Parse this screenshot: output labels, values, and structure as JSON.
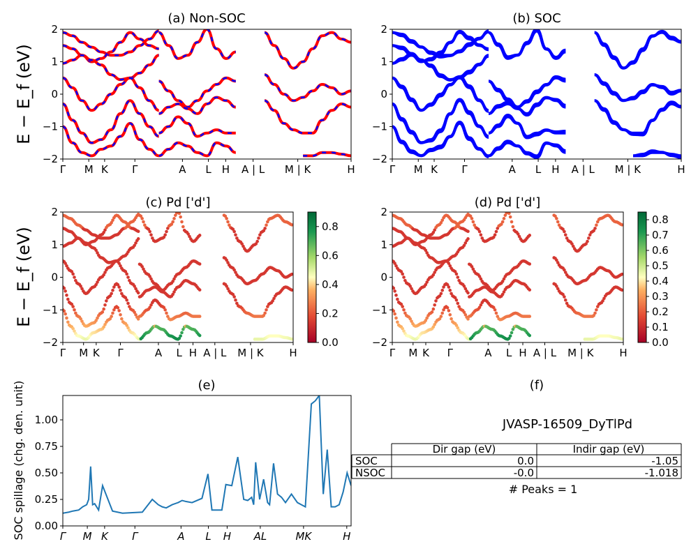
{
  "chart_data": [
    {
      "type": "line",
      "title": "(a) Non-SOC",
      "ylabel": "E − E_f (eV)",
      "ylim": [
        -2,
        2
      ],
      "yticks": [
        "2",
        "1",
        "0",
        "−1",
        "−2"
      ],
      "xtick_labels": [
        "Γ",
        "M",
        "K",
        "Γ",
        "A",
        "L",
        "H",
        "A | L",
        "M | K",
        "H"
      ],
      "series_colors": [
        "#ff0000",
        "#0000ff"
      ],
      "bands": [
        {
          "x": [
            0,
            0.5,
            1,
            1.5,
            2,
            2.5,
            3,
            3.5,
            4,
            4.5,
            5
          ],
          "y": [
            1.9,
            1.8,
            1.6,
            1.45,
            1.3,
            1.2,
            1.2,
            1.3,
            1.5,
            1.7,
            1.95
          ]
        },
        {
          "x": [
            0,
            0.5,
            1,
            1.5,
            2,
            2.5,
            3,
            3.5,
            4,
            4.5,
            5
          ],
          "y": [
            1.5,
            1.4,
            1.2,
            1.0,
            1.1,
            1.3,
            1.6,
            1.9,
            1.7,
            1.5,
            1.4
          ]
        },
        {
          "x": [
            0,
            0.5,
            1,
            1.5,
            2,
            2.5,
            3,
            3.5,
            4,
            4.5,
            5
          ],
          "y": [
            0.95,
            1.05,
            1.2,
            1.05,
            0.9,
            0.6,
            0.45,
            0.5,
            0.65,
            0.9,
            1.2
          ]
        },
        {
          "x": [
            0,
            0.5,
            1,
            1.5,
            2,
            2.5,
            3,
            3.5,
            4,
            4.5,
            5
          ],
          "y": [
            0.5,
            0.2,
            -0.2,
            -0.5,
            -0.3,
            0.0,
            0.3,
            0.5,
            0.2,
            -0.2,
            -0.5
          ]
        },
        {
          "x": [
            0,
            0.5,
            1,
            1.5,
            2,
            2.5,
            3,
            3.5,
            4,
            4.5,
            5
          ],
          "y": [
            -0.3,
            -0.8,
            -1.2,
            -1.5,
            -1.4,
            -1.1,
            -0.6,
            -0.2,
            -0.6,
            -1.0,
            -1.3
          ]
        },
        {
          "x": [
            0,
            0.5,
            1,
            1.5,
            2,
            2.5,
            3,
            3.5,
            4,
            4.5,
            5
          ],
          "y": [
            -1.0,
            -1.5,
            -1.8,
            -1.9,
            -1.7,
            -1.6,
            -1.3,
            -0.9,
            -1.4,
            -1.7,
            -1.9
          ]
        },
        {
          "x": [
            5,
            5.5,
            6,
            6.5,
            7,
            7.5,
            8,
            8.5,
            9
          ],
          "y": [
            0.4,
            0.1,
            -0.2,
            -0.4,
            -0.2,
            0.1,
            0.3,
            0.5,
            0.4
          ]
        },
        {
          "x": [
            5,
            5.5,
            6,
            6.5,
            7,
            7.5,
            8,
            8.5,
            9
          ],
          "y": [
            -0.6,
            -0.4,
            -0.3,
            -0.45,
            -0.6,
            -0.3,
            -0.1,
            -0.2,
            -0.4
          ]
        },
        {
          "x": [
            5,
            5.5,
            6,
            6.5,
            7,
            7.5,
            8,
            8.5,
            9
          ],
          "y": [
            -1.2,
            -1.0,
            -0.7,
            -0.9,
            -1.3,
            -1.2,
            -1.1,
            -1.2,
            -1.2
          ]
        },
        {
          "x": [
            5,
            5.5,
            6,
            6.5,
            7,
            7.5,
            8,
            8.5,
            9
          ],
          "y": [
            1.9,
            1.5,
            1.1,
            1.2,
            1.6,
            2.0,
            1.4,
            1.1,
            1.3
          ]
        },
        {
          "x": [
            5,
            5.5,
            6,
            6.5,
            7,
            7.5,
            8,
            8.5,
            9
          ],
          "y": [
            -1.9,
            -1.7,
            -1.5,
            -1.6,
            -1.8,
            -1.9,
            -1.5,
            -1.6,
            -1.8
          ]
        },
        {
          "x": [
            10.5,
            11,
            11.5,
            12,
            12.5,
            13,
            13.5,
            14,
            14.5,
            15
          ],
          "y": [
            0.6,
            0.3,
            0.0,
            -0.2,
            -0.1,
            0.1,
            0.3,
            0.2,
            0.0,
            0.1
          ]
        },
        {
          "x": [
            10.5,
            11,
            11.5,
            12,
            12.5,
            13,
            13.5,
            14,
            14.5,
            15
          ],
          "y": [
            -0.2,
            -0.5,
            -0.9,
            -1.1,
            -1.2,
            -1.2,
            -0.8,
            -0.5,
            -0.3,
            -0.4
          ]
        },
        {
          "x": [
            10.5,
            11,
            11.5,
            12,
            12.5,
            13,
            13.5,
            14,
            14.5,
            15
          ],
          "y": [
            1.9,
            1.5,
            1.1,
            0.8,
            1.0,
            1.4,
            1.8,
            1.9,
            1.7,
            1.6
          ]
        },
        {
          "x": [
            12.5,
            13,
            13.5,
            14,
            14.5,
            15
          ],
          "y": [
            -1.9,
            -1.9,
            -1.8,
            -1.8,
            -1.85,
            -1.9
          ]
        }
      ]
    },
    {
      "type": "line",
      "title": "(b) SOC",
      "ylim": [
        -2,
        2
      ],
      "yticks": [
        "2",
        "1",
        "0",
        "−1",
        "−2"
      ],
      "xtick_labels": [
        "Γ",
        "M",
        "K",
        "Γ",
        "A",
        "L",
        "H",
        "A | L",
        "M | K",
        "H"
      ],
      "series_colors": [
        "#0000ff"
      ],
      "bands": [
        {
          "x": [
            0,
            0.5,
            1,
            1.5,
            2,
            2.5,
            3,
            3.5,
            4,
            4.5,
            5
          ],
          "y": [
            1.9,
            1.8,
            1.6,
            1.45,
            1.3,
            1.2,
            1.2,
            1.3,
            1.5,
            1.7,
            1.95
          ]
        },
        {
          "x": [
            0,
            0.5,
            1,
            1.5,
            2,
            2.5,
            3,
            3.5,
            4,
            4.5,
            5
          ],
          "y": [
            1.5,
            1.4,
            1.2,
            1.0,
            1.1,
            1.3,
            1.6,
            1.9,
            1.7,
            1.5,
            1.4
          ]
        },
        {
          "x": [
            0,
            0.5,
            1,
            1.5,
            2,
            2.5,
            3,
            3.5,
            4,
            4.5,
            5
          ],
          "y": [
            0.95,
            1.05,
            1.2,
            1.05,
            0.9,
            0.6,
            0.45,
            0.5,
            0.65,
            0.9,
            1.2
          ]
        },
        {
          "x": [
            0,
            0.5,
            1,
            1.5,
            2,
            2.5,
            3,
            3.5,
            4,
            4.5,
            5
          ],
          "y": [
            0.5,
            0.2,
            -0.2,
            -0.5,
            -0.3,
            0.0,
            0.3,
            0.5,
            0.2,
            -0.2,
            -0.5
          ]
        },
        {
          "x": [
            0,
            0.5,
            1,
            1.5,
            2,
            2.5,
            3,
            3.5,
            4,
            4.5,
            5
          ],
          "y": [
            -0.3,
            -0.8,
            -1.2,
            -1.5,
            -1.4,
            -1.1,
            -0.6,
            -0.2,
            -0.6,
            -1.0,
            -1.3
          ]
        },
        {
          "x": [
            0,
            0.5,
            1,
            1.5,
            2,
            2.5,
            3,
            3.5,
            4,
            4.5,
            5
          ],
          "y": [
            -1.0,
            -1.5,
            -1.8,
            -1.9,
            -1.7,
            -1.6,
            -1.3,
            -0.9,
            -1.4,
            -1.7,
            -1.9
          ]
        },
        {
          "x": [
            5,
            5.5,
            6,
            6.5,
            7,
            7.5,
            8,
            8.5,
            9
          ],
          "y": [
            0.4,
            0.1,
            -0.2,
            -0.4,
            -0.2,
            0.1,
            0.3,
            0.5,
            0.4
          ]
        },
        {
          "x": [
            5,
            5.5,
            6,
            6.5,
            7,
            7.5,
            8,
            8.5,
            9
          ],
          "y": [
            -0.6,
            -0.4,
            -0.3,
            -0.45,
            -0.6,
            -0.3,
            -0.1,
            -0.2,
            -0.4
          ]
        },
        {
          "x": [
            5,
            5.5,
            6,
            6.5,
            7,
            7.5,
            8,
            8.5,
            9
          ],
          "y": [
            -1.2,
            -1.0,
            -0.7,
            -0.9,
            -1.3,
            -1.2,
            -1.1,
            -1.2,
            -1.2
          ]
        },
        {
          "x": [
            5,
            5.5,
            6,
            6.5,
            7,
            7.5,
            8,
            8.5,
            9
          ],
          "y": [
            1.9,
            1.5,
            1.1,
            1.2,
            1.6,
            2.0,
            1.4,
            1.1,
            1.3
          ]
        },
        {
          "x": [
            5,
            5.5,
            6,
            6.5,
            7,
            7.5,
            8,
            8.5,
            9
          ],
          "y": [
            -1.9,
            -1.7,
            -1.5,
            -1.6,
            -1.8,
            -1.9,
            -1.5,
            -1.6,
            -1.8
          ]
        },
        {
          "x": [
            10.5,
            11,
            11.5,
            12,
            12.5,
            13,
            13.5,
            14,
            14.5,
            15
          ],
          "y": [
            0.6,
            0.3,
            0.0,
            -0.2,
            -0.1,
            0.1,
            0.3,
            0.2,
            0.0,
            0.1
          ]
        },
        {
          "x": [
            10.5,
            11,
            11.5,
            12,
            12.5,
            13,
            13.5,
            14,
            14.5,
            15
          ],
          "y": [
            -0.2,
            -0.5,
            -0.9,
            -1.1,
            -1.2,
            -1.2,
            -0.8,
            -0.5,
            -0.3,
            -0.4
          ]
        },
        {
          "x": [
            10.5,
            11,
            11.5,
            12,
            12.5,
            13,
            13.5,
            14,
            14.5,
            15
          ],
          "y": [
            1.9,
            1.5,
            1.1,
            0.8,
            1.0,
            1.4,
            1.8,
            1.9,
            1.7,
            1.6
          ]
        },
        {
          "x": [
            12.5,
            13,
            13.5,
            14,
            14.5,
            15
          ],
          "y": [
            -1.9,
            -1.9,
            -1.8,
            -1.8,
            -1.85,
            -1.9
          ]
        }
      ]
    },
    {
      "type": "scatter",
      "title": "(c)  Pd ['d']",
      "ylabel": "E − E_f (eV)",
      "ylim": [
        -2,
        2
      ],
      "yticks": [
        "2",
        "1",
        "0",
        "−1",
        "−2"
      ],
      "xtick_labels": [
        "Γ",
        "M",
        "K",
        "Γ",
        "A",
        "L",
        "H",
        "A | L",
        "M | K",
        "H"
      ],
      "colorbar": {
        "min": 0.0,
        "max": 0.9,
        "ticks": [
          "0.0",
          "0.2",
          "0.4",
          "0.6",
          "0.8"
        ],
        "colormap": "RdYlGn"
      }
    },
    {
      "type": "scatter",
      "title": "(d) Pd ['d']",
      "ylim": [
        -2,
        2
      ],
      "yticks": [
        "2",
        "1",
        "0",
        "−1",
        "−2"
      ],
      "xtick_labels": [
        "Γ",
        "M",
        "K",
        "Γ",
        "A",
        "L",
        "H",
        "A | L",
        "M | K",
        "H"
      ],
      "colorbar": {
        "min": 0.0,
        "max": 0.85,
        "ticks": [
          "0.0",
          "0.1",
          "0.2",
          "0.3",
          "0.4",
          "0.5",
          "0.6",
          "0.7",
          "0.8"
        ],
        "colormap": "RdYlGn"
      }
    },
    {
      "type": "line",
      "title": "(e)",
      "ylabel": "SOC spillage (chg. den. unit)",
      "ylim": [
        0,
        1.23
      ],
      "yticks": [
        "0.00",
        "0.25",
        "0.50",
        "0.75",
        "1.00"
      ],
      "xtick_labels": [
        "Γ",
        "M",
        "K",
        "Γ",
        "A",
        "L",
        "H",
        "AL",
        "MK",
        "H"
      ],
      "color": "#1f77b4",
      "x": [
        0,
        3,
        5,
        8,
        10,
        12,
        13,
        14,
        15,
        16,
        18,
        20,
        25,
        30,
        40,
        45,
        48,
        50,
        52,
        55,
        58,
        60,
        62,
        65,
        70,
        73,
        75,
        78,
        80,
        82,
        85,
        88,
        91,
        93,
        95,
        96,
        97,
        99,
        101,
        103,
        104,
        106,
        108,
        110,
        112,
        115,
        118,
        120,
        122,
        125,
        127,
        129,
        131,
        133,
        135,
        137,
        139,
        141,
        143,
        145
      ],
      "y": [
        0.12,
        0.13,
        0.14,
        0.15,
        0.18,
        0.2,
        0.25,
        0.56,
        0.2,
        0.21,
        0.15,
        0.38,
        0.14,
        0.12,
        0.13,
        0.25,
        0.2,
        0.18,
        0.17,
        0.2,
        0.22,
        0.24,
        0.23,
        0.22,
        0.26,
        0.49,
        0.15,
        0.15,
        0.15,
        0.39,
        0.38,
        0.65,
        0.25,
        0.24,
        0.27,
        0.2,
        0.6,
        0.25,
        0.44,
        0.22,
        0.2,
        0.59,
        0.3,
        0.27,
        0.22,
        0.3,
        0.22,
        0.2,
        0.18,
        1.15,
        1.18,
        1.23,
        0.3,
        0.72,
        0.18,
        0.18,
        0.2,
        0.32,
        0.5,
        0.38
      ]
    }
  ],
  "table_panel": {
    "title": "(f)",
    "material": "JVASP-16509_DyTlPd",
    "columns": [
      "",
      "Dir gap (eV)",
      "Indir gap (eV)"
    ],
    "rows": [
      [
        "SOC",
        "0.0",
        "-1.05"
      ],
      [
        "NSOC",
        "-0.0",
        "-1.018"
      ]
    ],
    "peaks_label": "# Peaks = 1"
  }
}
